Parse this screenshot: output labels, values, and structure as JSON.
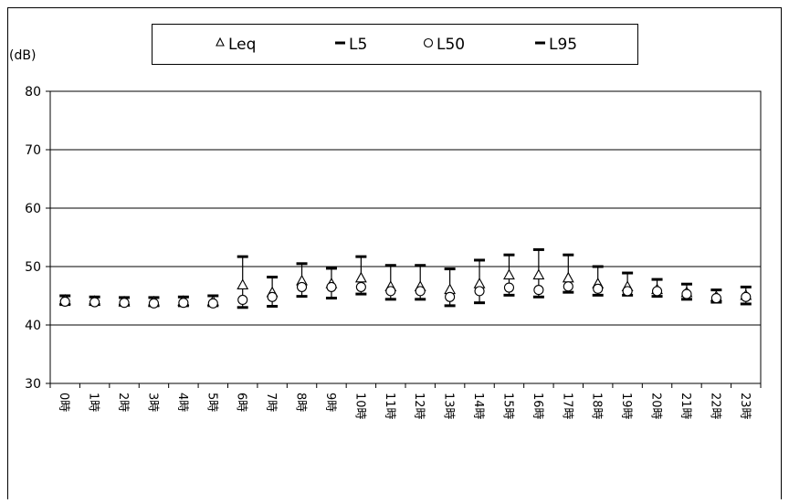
{
  "chart_data": {
    "type": "scatter",
    "ylabel": "(dB)",
    "ylim": [
      30,
      80
    ],
    "y_ticks": [
      30,
      40,
      50,
      60,
      70,
      80
    ],
    "grid": true,
    "legend_position": "top",
    "categories": [
      "0時",
      "1時",
      "2時",
      "3時",
      "4時",
      "5時",
      "6時",
      "7時",
      "8時",
      "9時",
      "10時",
      "11時",
      "12時",
      "13時",
      "14時",
      "15時",
      "16時",
      "17時",
      "18時",
      "19時",
      "20時",
      "21時",
      "22時",
      "23時"
    ],
    "series": [
      {
        "name": "Leq",
        "marker": "triangle",
        "values": [
          44.2,
          44.0,
          43.9,
          43.9,
          44.0,
          44.0,
          46.8,
          45.5,
          47.5,
          47.0,
          48.0,
          46.5,
          46.5,
          46.0,
          47.0,
          48.5,
          48.5,
          48.0,
          47.0,
          46.5,
          46.0,
          45.5,
          44.8,
          45.0
        ]
      },
      {
        "name": "L5",
        "marker": "dash",
        "values": [
          45.0,
          44.8,
          44.7,
          44.7,
          44.8,
          45.0,
          51.7,
          48.2,
          50.5,
          49.7,
          51.7,
          50.2,
          50.2,
          49.6,
          51.1,
          52.0,
          52.9,
          52.0,
          50.0,
          48.9,
          47.8,
          47.0,
          46.0,
          46.5
        ]
      },
      {
        "name": "L50",
        "marker": "circle",
        "values": [
          44.0,
          43.9,
          43.8,
          43.7,
          43.8,
          43.7,
          44.3,
          44.8,
          46.5,
          46.5,
          46.5,
          45.8,
          45.8,
          44.8,
          45.8,
          46.4,
          46.0,
          46.6,
          46.2,
          45.8,
          45.8,
          45.3,
          44.6,
          44.8
        ]
      },
      {
        "name": "L95",
        "marker": "dash",
        "values": [
          43.5,
          43.5,
          43.4,
          43.3,
          43.3,
          43.3,
          43.0,
          43.2,
          44.9,
          44.6,
          45.3,
          44.4,
          44.4,
          43.3,
          43.8,
          45.1,
          44.8,
          45.6,
          45.1,
          45.1,
          44.9,
          44.4,
          43.9,
          43.6
        ]
      }
    ]
  }
}
